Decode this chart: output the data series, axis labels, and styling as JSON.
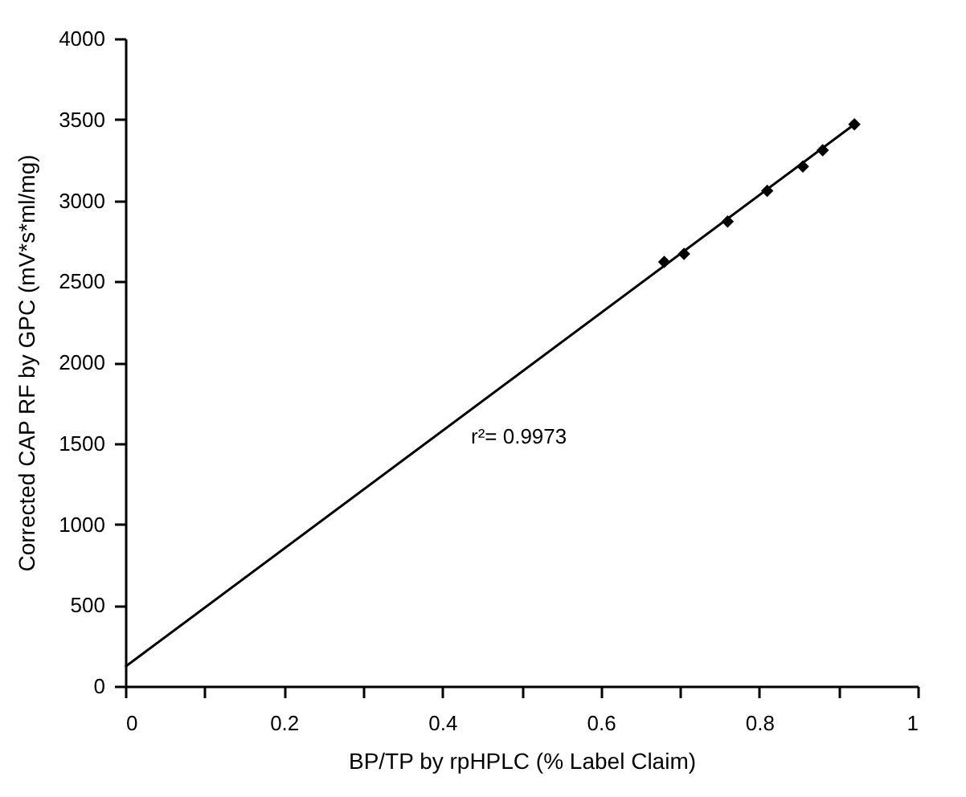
{
  "chart_data": {
    "type": "scatter",
    "xlabel": "BP/TP by rpHPLC (% Label Claim)",
    "ylabel": "Corrected CAP RF by GPC (mV*s*ml/mg)",
    "series": [
      {
        "color": "#000000",
        "marker": "diamond",
        "x": [
          0.68,
          0.705,
          0.76,
          0.81,
          0.855,
          0.88,
          0.92
        ],
        "values": [
          2620,
          2670,
          2870,
          3060,
          3210,
          3310,
          3470
        ]
      },
      {
        "type": "line",
        "color": "#000000",
        "line_style": "solid",
        "x": [
          0,
          0.92
        ],
        "values": [
          120,
          3470
        ]
      }
    ],
    "annotations": [
      "r²= 0.9973"
    ],
    "xlim": [
      0,
      1
    ],
    "ylim": [
      0,
      4000
    ],
    "xticks": [
      0,
      {
        "value": 0.1,
        "label": null
      },
      0.2,
      {
        "value": 0.3,
        "label": null
      },
      0.4,
      {
        "value": 0.5,
        "label": null
      },
      0.6,
      {
        "value": 0.7,
        "label": null
      },
      0.8,
      {
        "value": 0.9,
        "label": null
      },
      1
    ],
    "yticks": [
      0,
      500,
      1000,
      1500,
      2000,
      2500,
      3000,
      3500,
      4000
    ],
    "grid": false
  }
}
